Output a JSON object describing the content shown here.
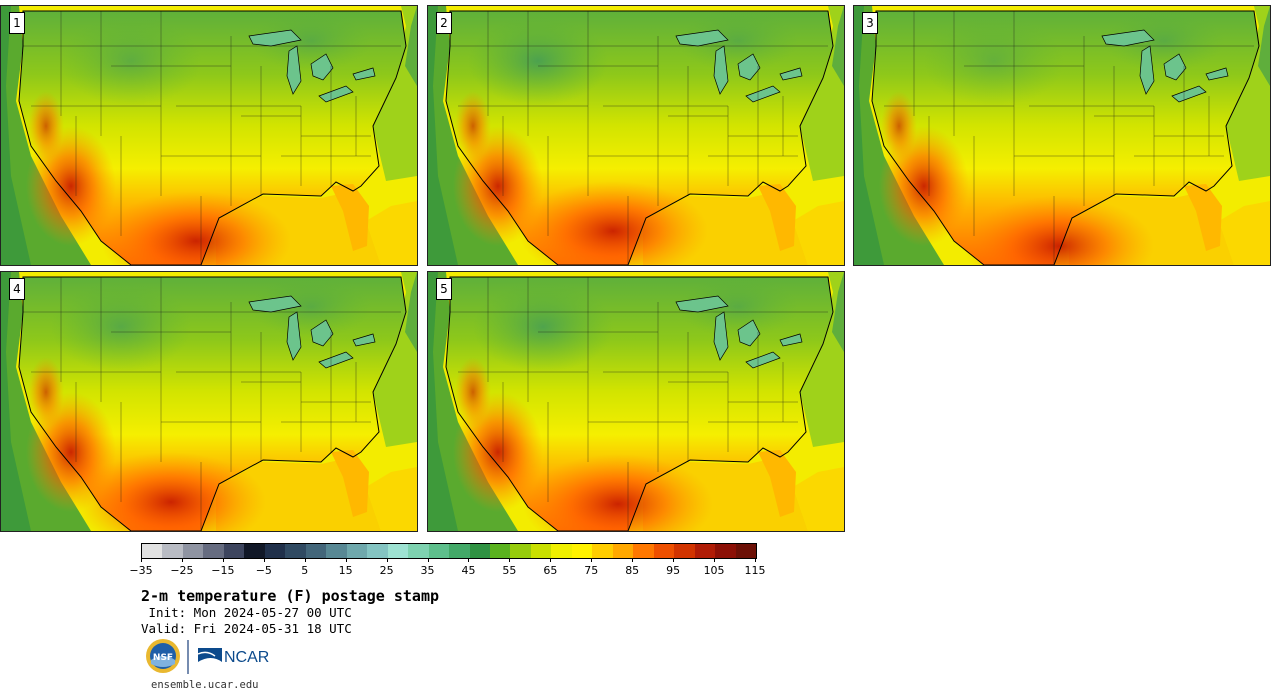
{
  "panels": [
    {
      "label": "1",
      "variant": 0
    },
    {
      "label": "2",
      "variant": 1
    },
    {
      "label": "3",
      "variant": 2
    },
    {
      "label": "4",
      "variant": 3
    },
    {
      "label": "5",
      "variant": 4
    }
  ],
  "colorbar": {
    "colors": [
      "#e2e2e2",
      "#b9bcc4",
      "#8f94a2",
      "#666c80",
      "#3d455e",
      "#111827",
      "#20304a",
      "#304a62",
      "#43667a",
      "#588894",
      "#6fa8ac",
      "#84c4c2",
      "#9ee2d2",
      "#7ed2b0",
      "#5ebf8c",
      "#43a968",
      "#2f9242",
      "#5ab21e",
      "#97cc0c",
      "#c9e000",
      "#f0f000",
      "#fff200",
      "#ffcd00",
      "#ffa800",
      "#ff7800",
      "#ee5000",
      "#d23400",
      "#b01c06",
      "#8c1006",
      "#6c1006"
    ],
    "tick_labels": [
      "−35",
      "−25",
      "−15",
      "−5",
      "5",
      "15",
      "25",
      "35",
      "45",
      "55",
      "65",
      "75",
      "85",
      "95",
      "105",
      "115"
    ]
  },
  "title": "2-m temperature (F) postage stamp",
  "init": " Init: Mon 2024-05-27 00 UTC",
  "valid": "Valid: Fri 2024-05-31 18 UTC",
  "logos": {
    "nsf": "NSF",
    "ncar": "NCAR"
  },
  "footer_url": "ensemble.ucar.edu"
}
